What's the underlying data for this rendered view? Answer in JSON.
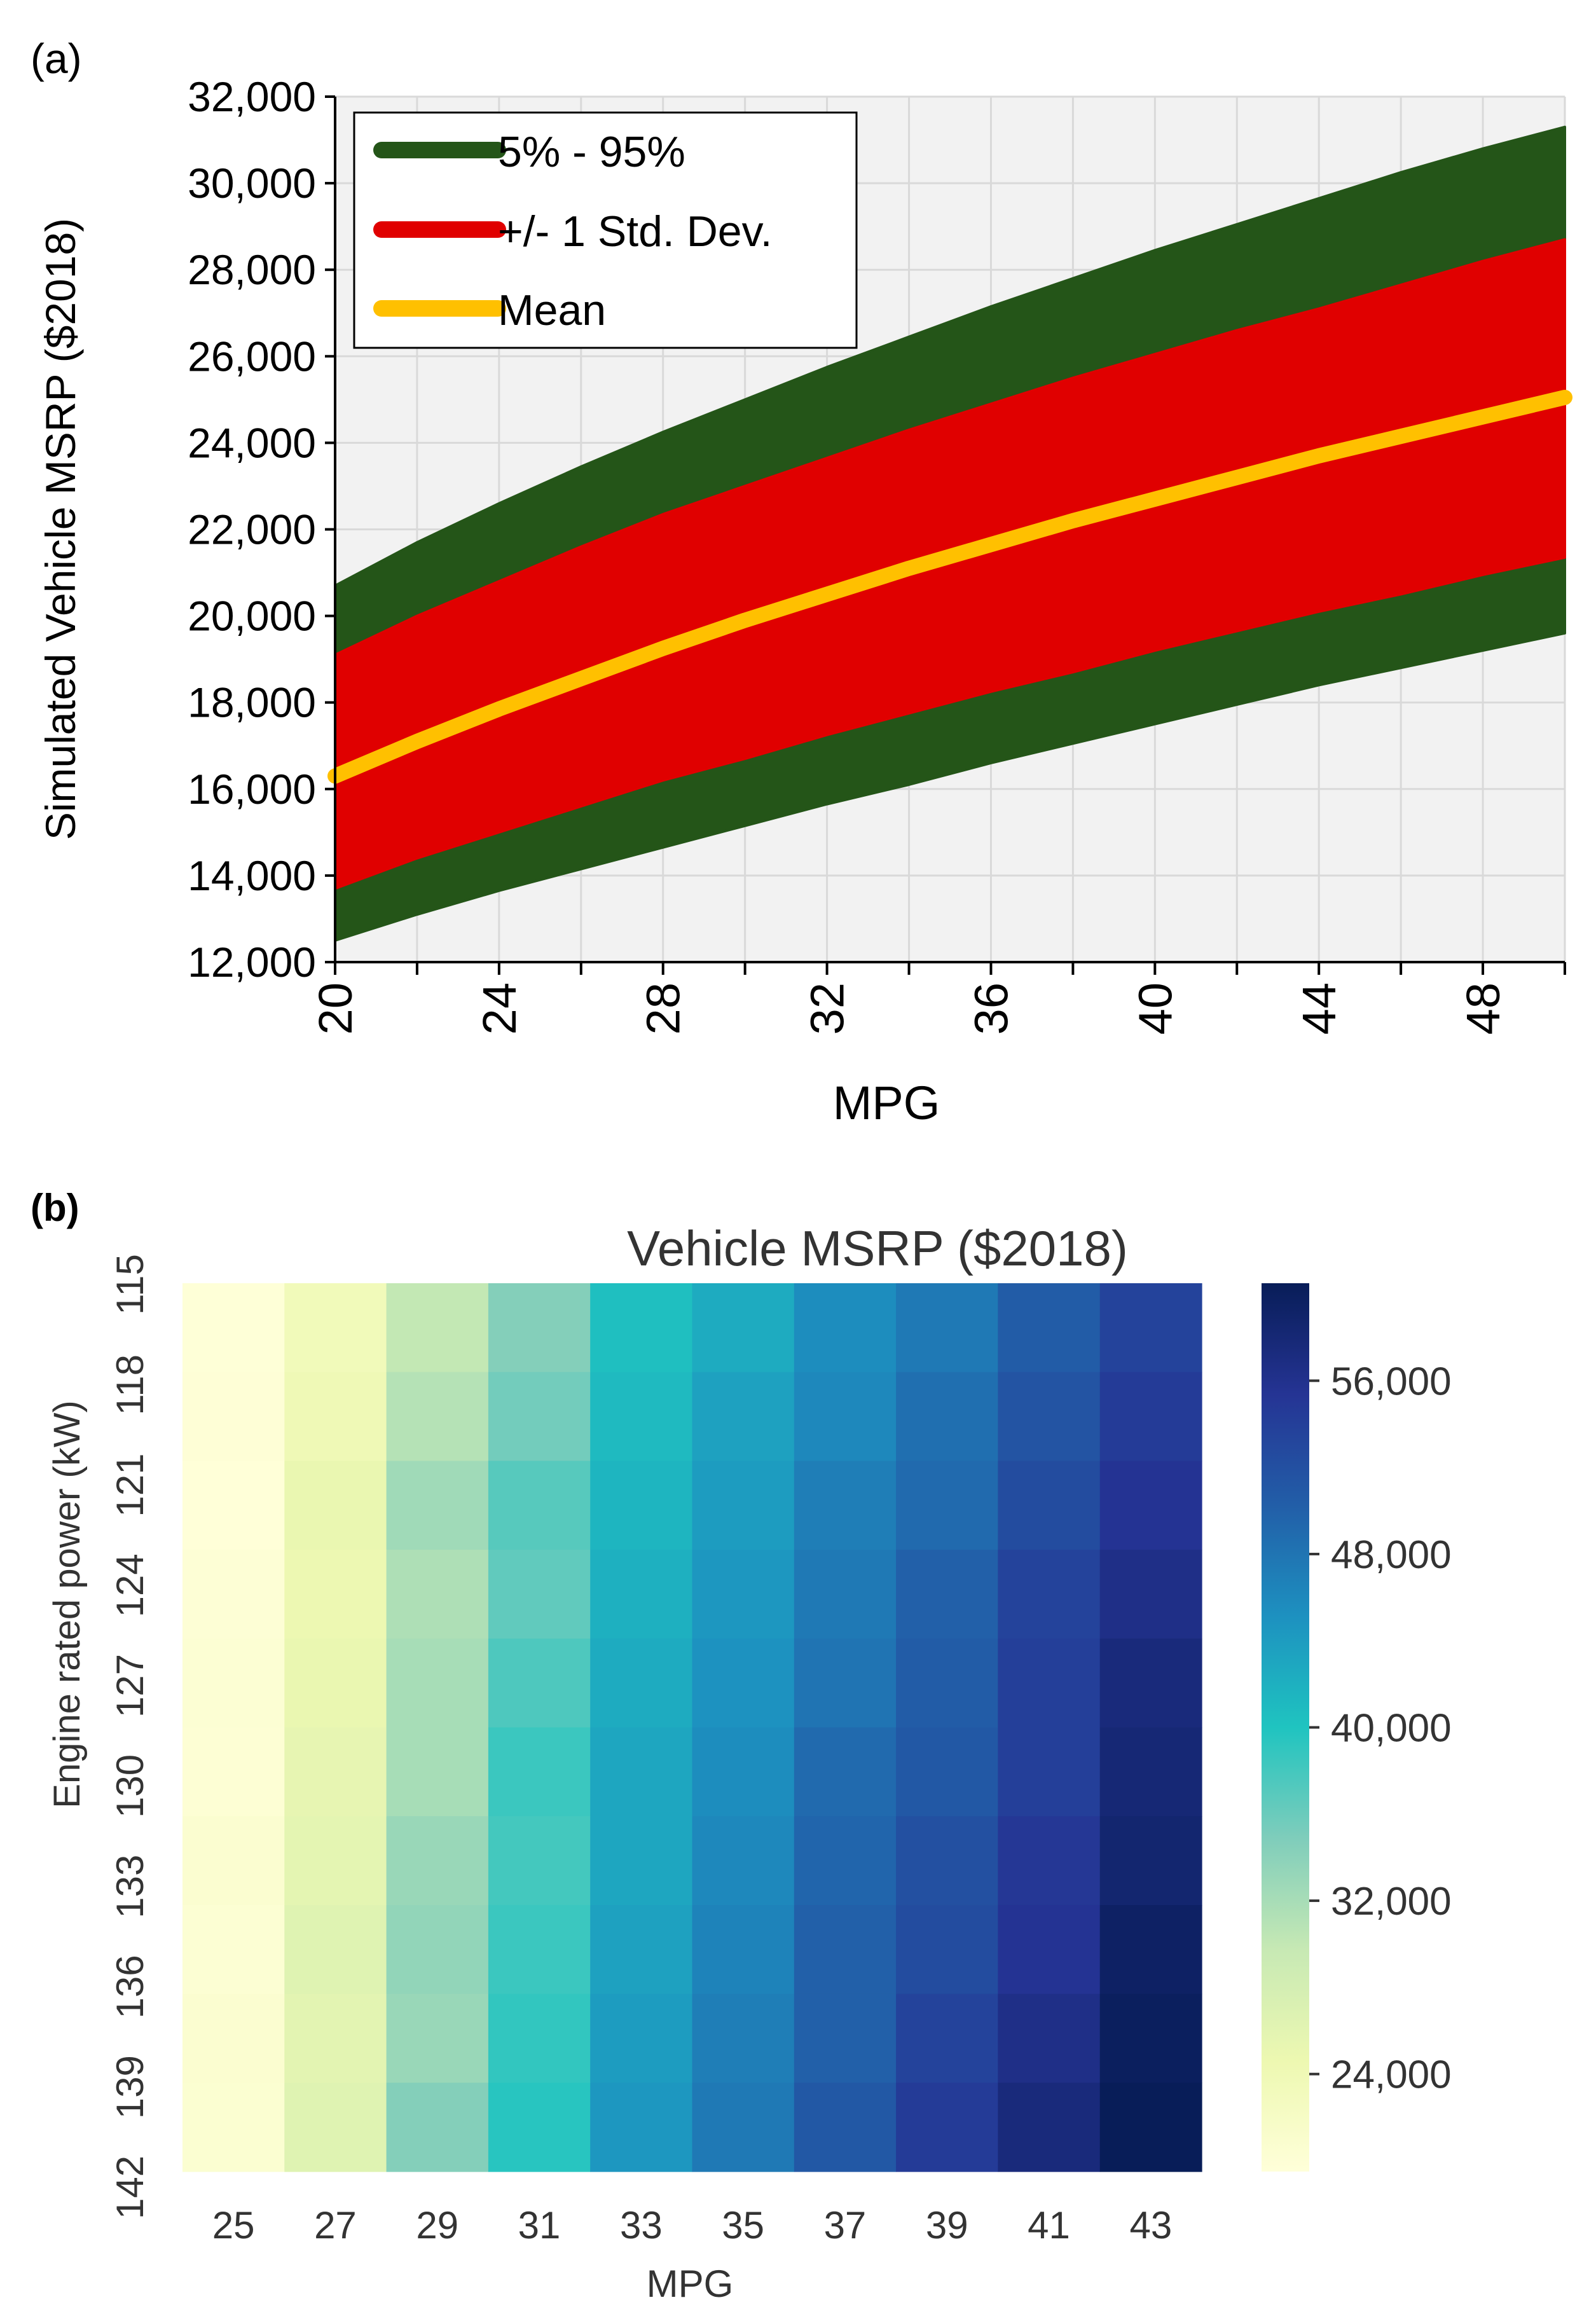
{
  "figure": {
    "panel_a_label": "(a)",
    "panel_b_label": "(b)"
  },
  "chart_data": [
    {
      "type": "area",
      "title": "",
      "panel": "(a)",
      "xlabel": "MPG",
      "ylabel": "Simulated Vehicle MSRP ($2018)",
      "xlim": [
        20,
        50
      ],
      "ylim": [
        12000,
        32000
      ],
      "x_ticks": [
        20,
        24,
        28,
        32,
        36,
        40,
        44,
        48
      ],
      "y_ticks": [
        12000,
        14000,
        16000,
        18000,
        20000,
        22000,
        24000,
        26000,
        28000,
        30000,
        32000
      ],
      "y_tick_labels": [
        "12,000",
        "14,000",
        "16,000",
        "18,000",
        "20,000",
        "22,000",
        "24,000",
        "26,000",
        "28,000",
        "30,000",
        "32,000"
      ],
      "grid": true,
      "legend_position": "top-left",
      "x": [
        20,
        22,
        24,
        26,
        28,
        30,
        32,
        34,
        36,
        38,
        40,
        42,
        44,
        46,
        48,
        50
      ],
      "series": [
        {
          "name": "5% - 95%",
          "color": "#245518",
          "lower": [
            12500,
            13100,
            13650,
            14150,
            14650,
            15150,
            15650,
            16100,
            16600,
            17050,
            17500,
            17950,
            18400,
            18800,
            19200,
            19600
          ],
          "upper": [
            20700,
            21700,
            22600,
            23450,
            24250,
            25000,
            25750,
            26450,
            27150,
            27800,
            28450,
            29050,
            29650,
            30250,
            30800,
            31300
          ]
        },
        {
          "name": "+/- 1 Std. Dev.",
          "color": "#e00000",
          "lower": [
            13700,
            14400,
            15000,
            15600,
            16200,
            16700,
            17250,
            17750,
            18250,
            18700,
            19200,
            19650,
            20100,
            20500,
            20950,
            21350
          ],
          "upper": [
            19100,
            20000,
            20800,
            21600,
            22350,
            23000,
            23650,
            24300,
            24900,
            25500,
            26050,
            26600,
            27100,
            27650,
            28200,
            28700
          ]
        },
        {
          "name": "Mean",
          "color": "#ffc000",
          "values": [
            16300,
            17100,
            17850,
            18550,
            19250,
            19900,
            20500,
            21100,
            21650,
            22200,
            22700,
            23200,
            23700,
            24150,
            24600,
            25050
          ]
        }
      ]
    },
    {
      "type": "heatmap",
      "panel": "(b)",
      "title": "Vehicle MSRP ($2018)",
      "xlabel": "MPG",
      "ylabel": "Engine rated power (kW)",
      "x_categories": [
        "25",
        "27",
        "29",
        "31",
        "33",
        "35",
        "37",
        "39",
        "41",
        "43"
      ],
      "y_labels": [
        "115",
        "118",
        "121",
        "124",
        "127",
        "130",
        "133",
        "136",
        "139",
        "142"
      ],
      "colorbar_ticks": [
        24000,
        32000,
        40000,
        48000,
        56000
      ],
      "colorbar_tick_labels": [
        "24,000",
        "32,000",
        "40,000",
        "48,000",
        "56,000"
      ],
      "color_range": [
        19500,
        60500
      ],
      "colormap": "YlGnBu",
      "values": [
        [
          19700,
          23500,
          30000,
          34500,
          40500,
          42500,
          45500,
          47500,
          50500,
          53500
        ],
        [
          19900,
          24000,
          31000,
          35500,
          41000,
          43500,
          46000,
          48500,
          51500,
          54500
        ],
        [
          19600,
          25000,
          32500,
          37000,
          41500,
          44000,
          47000,
          49000,
          52500,
          55500
        ],
        [
          20000,
          24500,
          31500,
          36500,
          42000,
          44500,
          47500,
          50000,
          53500,
          56500
        ],
        [
          20300,
          25000,
          32000,
          37500,
          42500,
          45000,
          48000,
          50500,
          54000,
          57500
        ],
        [
          20100,
          25500,
          32000,
          38500,
          43000,
          45500,
          49000,
          51000,
          54000,
          58000
        ],
        [
          20600,
          25800,
          33000,
          38000,
          43000,
          46000,
          49500,
          52000,
          55000,
          58500
        ],
        [
          20300,
          26500,
          33500,
          38500,
          43500,
          46500,
          50000,
          52500,
          55500,
          59500
        ],
        [
          20700,
          26000,
          33000,
          39000,
          44000,
          47000,
          50000,
          53500,
          56500,
          60000
        ],
        [
          20500,
          26500,
          34500,
          39500,
          44500,
          47500,
          51000,
          54500,
          57500,
          60500
        ]
      ]
    }
  ]
}
